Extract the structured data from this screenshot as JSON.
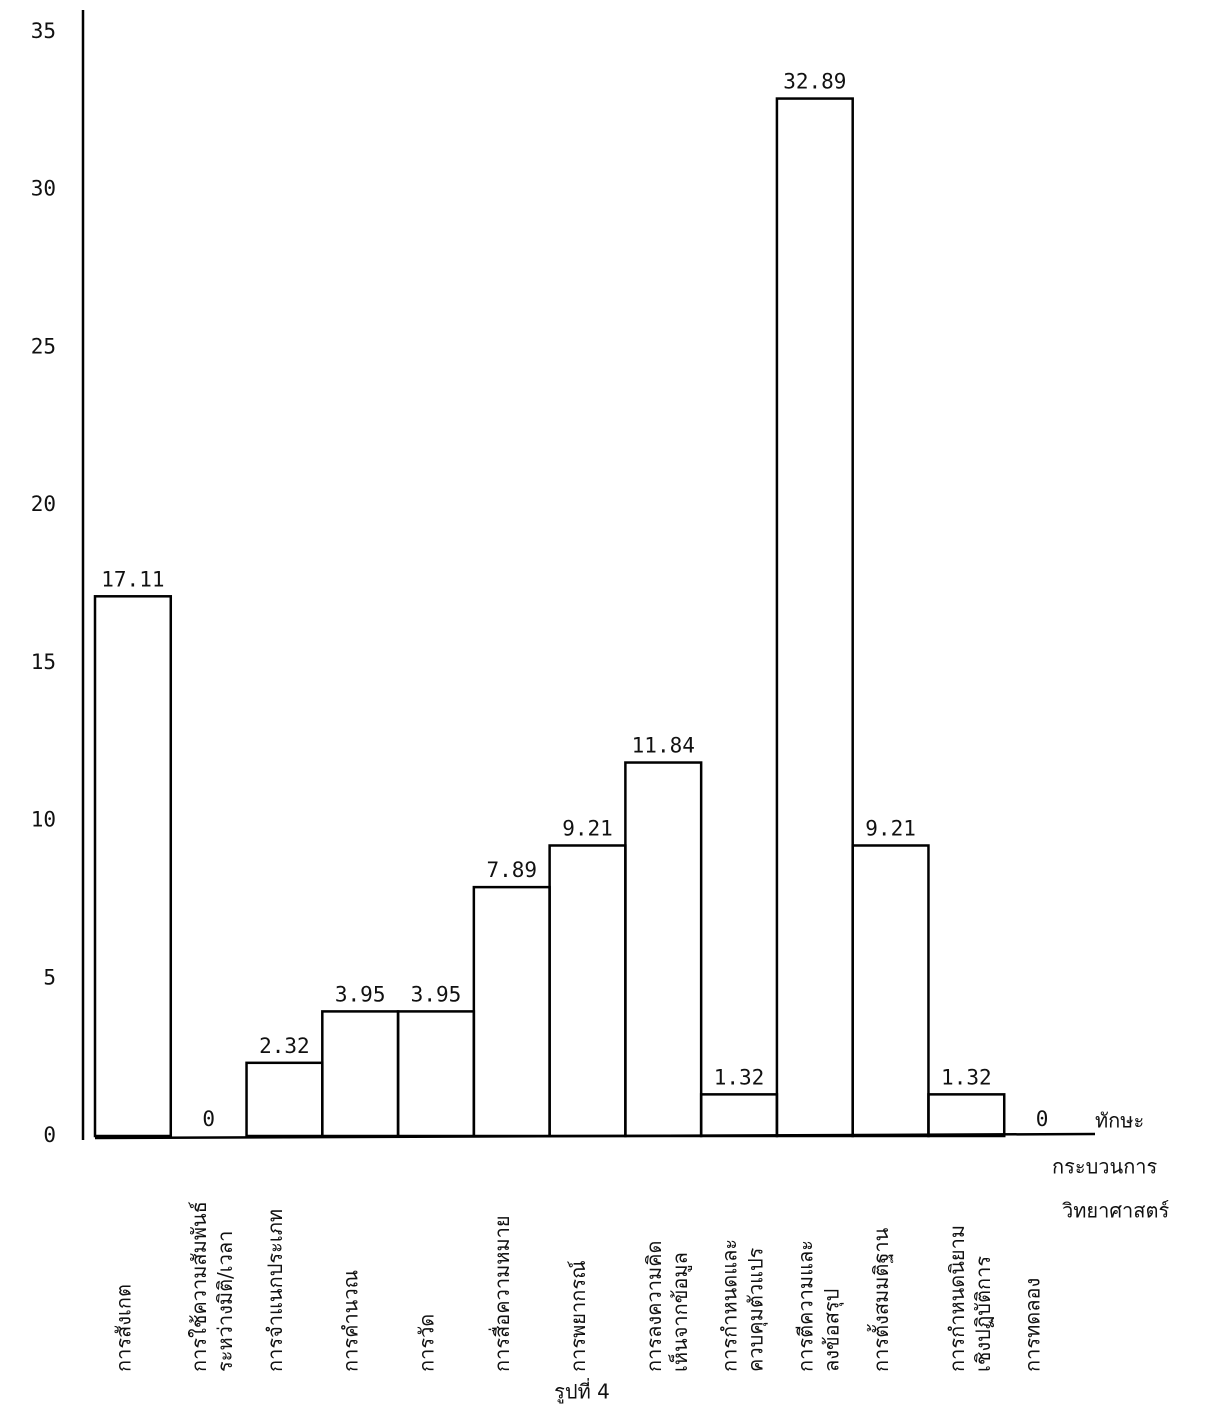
{
  "chart_data": {
    "type": "bar",
    "categories": [
      [
        "การสังเกต"
      ],
      [
        "การใช้ความสัมพันธ์",
        "ระหว่างมิติ/เวลา"
      ],
      [
        "การจำแนกประเภท"
      ],
      [
        "การคำนวณ"
      ],
      [
        "การวัด"
      ],
      [
        "การสื่อความหมาย"
      ],
      [
        "การพยากรณ์"
      ],
      [
        "การลงความคิด",
        "เห็นจากข้อมูล"
      ],
      [
        "การกำหนดและ",
        "ควบคุมตัวแปร"
      ],
      [
        "การตีความและ",
        "ลงข้อสรุป"
      ],
      [
        "การตั้งสมมติฐาน"
      ],
      [
        "การกำหนดนิยาม",
        "เชิงปฏิบัติการ"
      ],
      [
        "การทดลอง"
      ]
    ],
    "values": [
      17.11,
      0,
      2.32,
      3.95,
      3.95,
      7.89,
      9.21,
      11.84,
      1.32,
      32.89,
      9.21,
      1.32,
      0
    ],
    "color": "#000000",
    "x_label": [
      "ทักษะ",
      "กระบวนการ",
      "วิทยาศาสตร์"
    ],
    "caption": "รูปที่ 4",
    "ylim": [
      0,
      35
    ],
    "yticks": [
      0,
      5,
      10,
      15,
      20,
      25,
      30,
      35
    ],
    "grid": false
  }
}
